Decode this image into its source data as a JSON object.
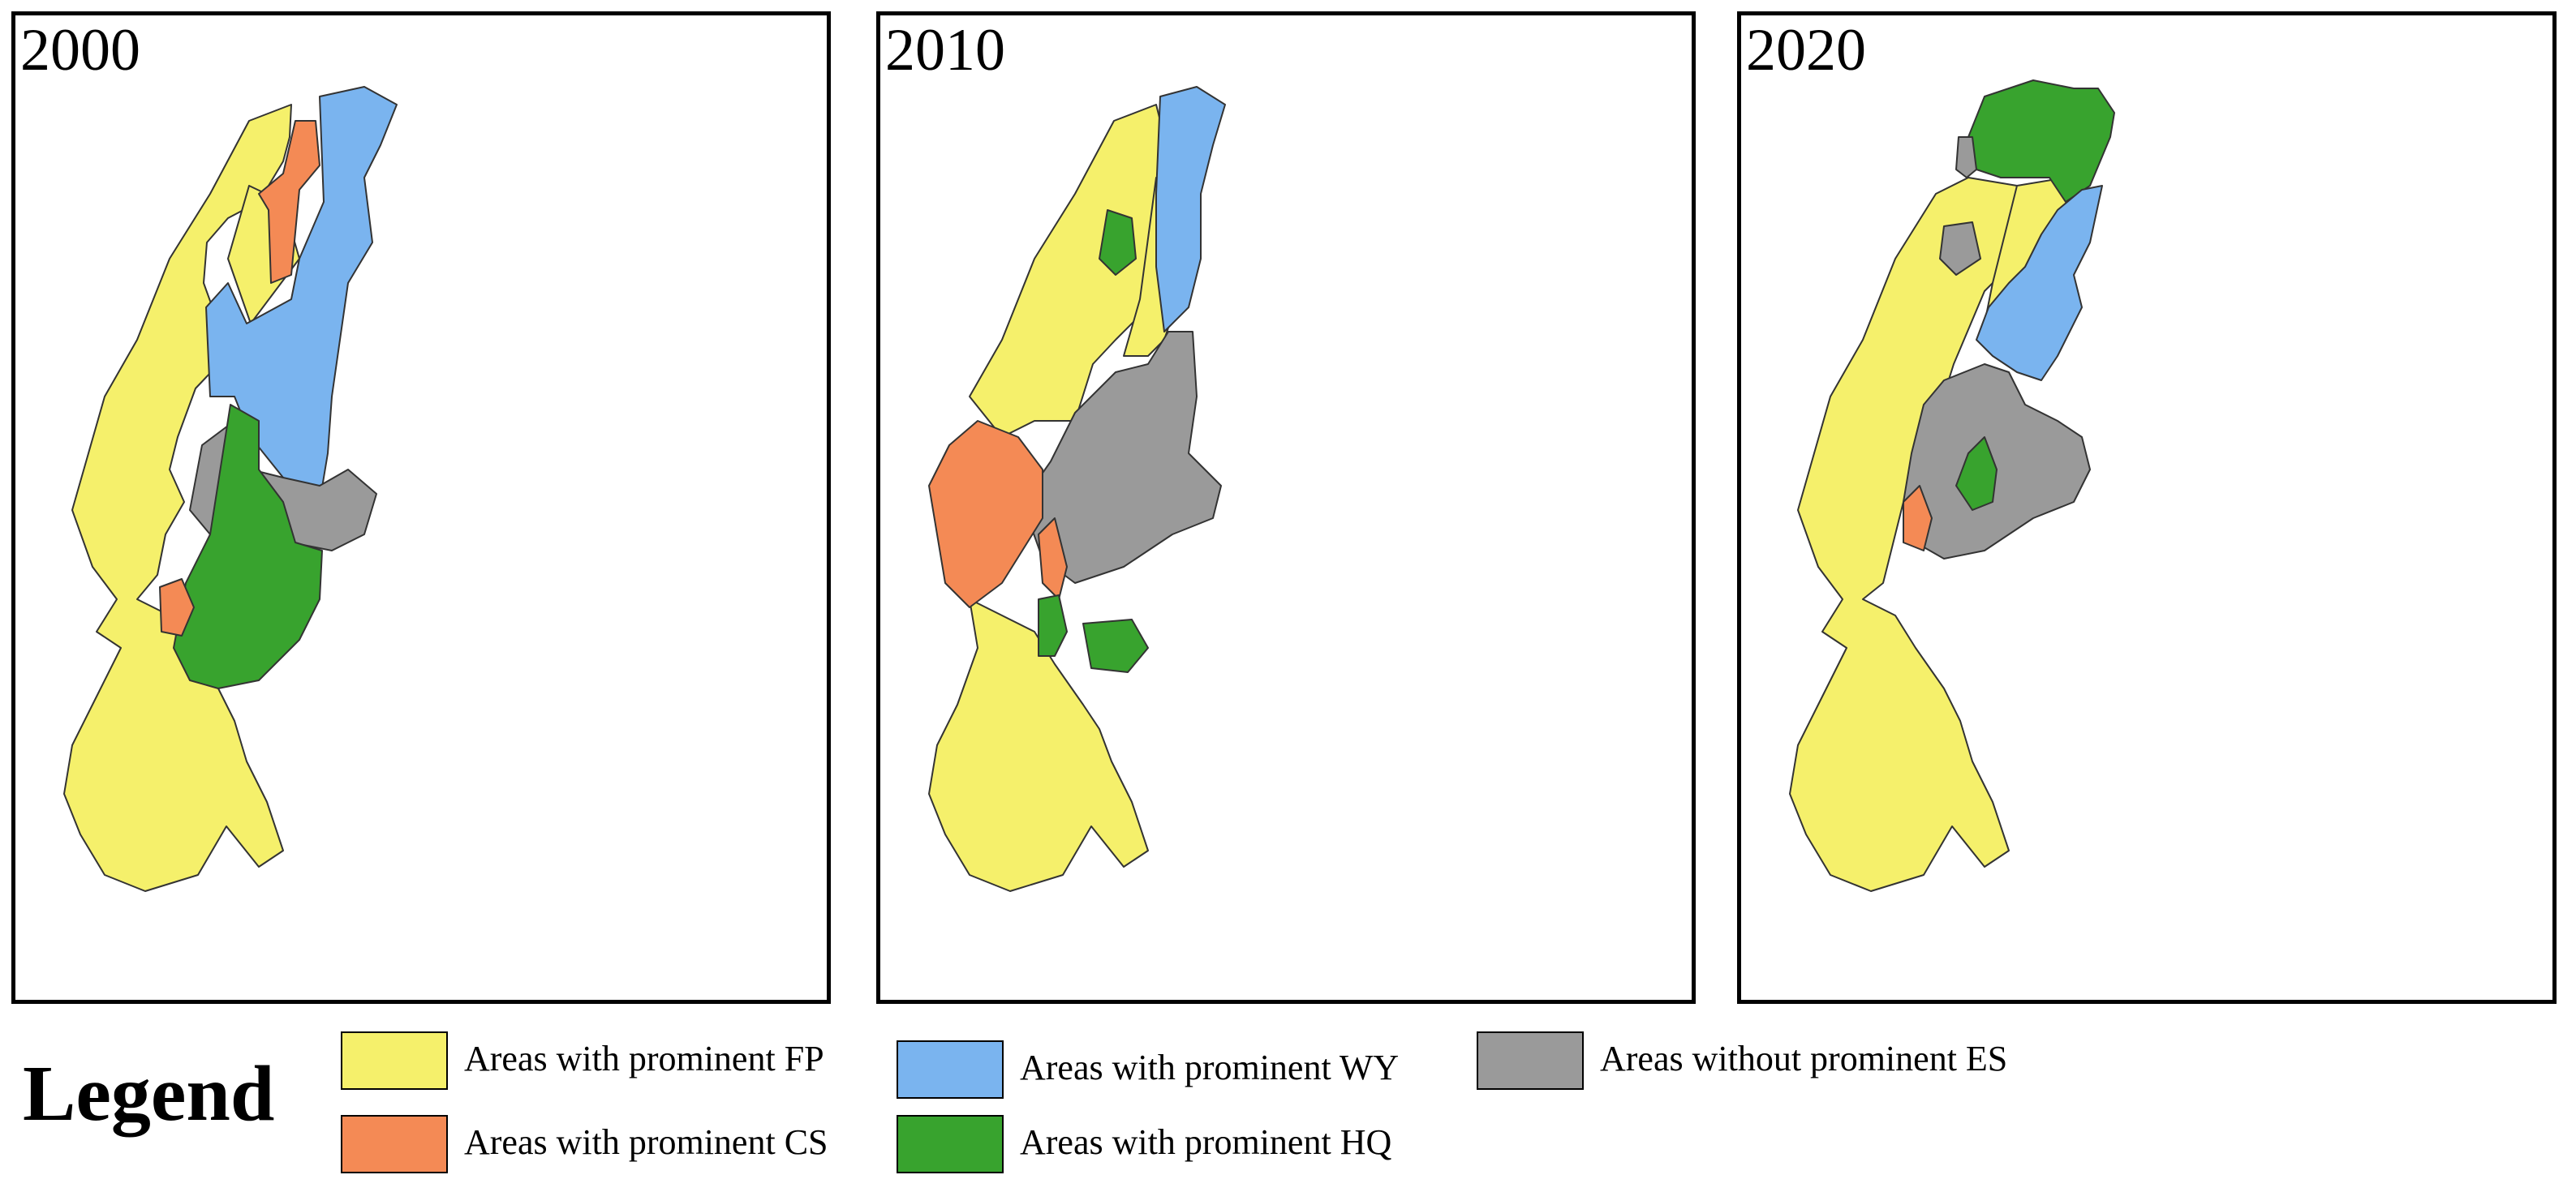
{
  "colors": {
    "FP": "#f5f06b",
    "CS": "#f48a55",
    "WY": "#7ab4ef",
    "HQ": "#38a32e",
    "none": "#9a9a9a"
  },
  "panels": [
    {
      "year": "2000"
    },
    {
      "year": "2010"
    },
    {
      "year": "2020"
    }
  ],
  "legend": {
    "title": "Legend",
    "items": [
      {
        "key": "FP",
        "label": "Areas with prominent FP"
      },
      {
        "key": "WY",
        "label": "Areas with prominent WY"
      },
      {
        "key": "none",
        "label": "Areas without prominent ES"
      },
      {
        "key": "CS",
        "label": "Areas with prominent CS"
      },
      {
        "key": "HQ",
        "label": "Areas with prominent HQ"
      }
    ]
  }
}
